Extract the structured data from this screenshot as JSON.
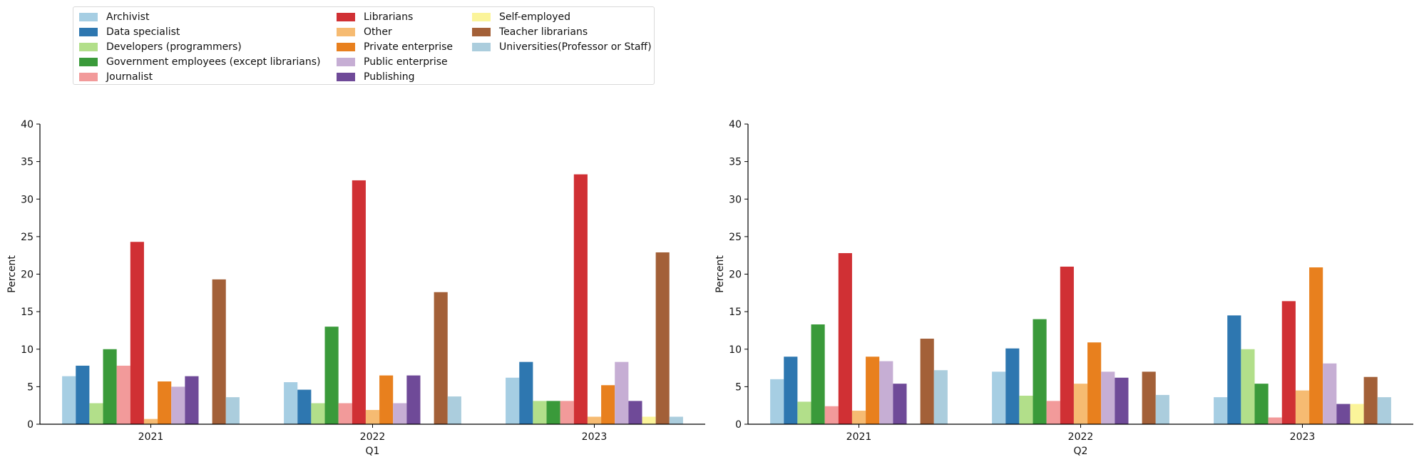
{
  "colors": [
    "#a6cee3",
    "#2e77b0",
    "#b2df8a",
    "#3a9a3a",
    "#f29a9a",
    "#d03034",
    "#f6bb72",
    "#e8801e",
    "#c6aed4",
    "#6f4a98",
    "#fbf49a",
    "#a36038",
    "#abcddd"
  ],
  "chart_data": [
    {
      "type": "bar",
      "categories": [
        "2021",
        "2022",
        "2023"
      ],
      "xlabel": "Q1",
      "ylabel": "Percent",
      "ylim": [
        0,
        40
      ],
      "yticks": [
        0,
        5,
        10,
        15,
        20,
        25,
        30,
        35,
        40
      ],
      "legend": "top-left",
      "grid": false,
      "series": [
        {
          "name": "Archivist",
          "values": [
            6.4,
            5.6,
            6.2
          ]
        },
        {
          "name": "Data specialist",
          "values": [
            7.8,
            4.6,
            8.3
          ]
        },
        {
          "name": "Developers (programmers)",
          "values": [
            2.8,
            2.8,
            3.1
          ]
        },
        {
          "name": "Government employees (except librarians)",
          "values": [
            10.0,
            13.0,
            3.1
          ]
        },
        {
          "name": "Journalist",
          "values": [
            7.8,
            2.8,
            3.1
          ]
        },
        {
          "name": "Librarians",
          "values": [
            24.3,
            32.5,
            33.3
          ]
        },
        {
          "name": "Other",
          "values": [
            0.7,
            1.9,
            1.0
          ]
        },
        {
          "name": "Private enterprise",
          "values": [
            5.7,
            6.5,
            5.2
          ]
        },
        {
          "name": "Public enterprise",
          "values": [
            5.0,
            2.8,
            8.3
          ]
        },
        {
          "name": "Publishing",
          "values": [
            6.4,
            6.5,
            3.1
          ]
        },
        {
          "name": "Self-employed",
          "values": [
            0,
            0,
            1.0
          ]
        },
        {
          "name": "Teacher librarians",
          "values": [
            19.3,
            17.6,
            22.9
          ]
        },
        {
          "name": "Universities(Professor or Staff)",
          "values": [
            3.6,
            3.7,
            1.0
          ]
        }
      ]
    },
    {
      "type": "bar",
      "categories": [
        "2021",
        "2022",
        "2023"
      ],
      "xlabel": "Q2",
      "ylabel": "Percent",
      "ylim": [
        0,
        40
      ],
      "yticks": [
        0,
        5,
        10,
        15,
        20,
        25,
        30,
        35,
        40
      ],
      "grid": false,
      "series": [
        {
          "name": "Archivist",
          "values": [
            6.0,
            7.0,
            3.6
          ]
        },
        {
          "name": "Data specialist",
          "values": [
            9.0,
            10.1,
            14.5
          ]
        },
        {
          "name": "Developers (programmers)",
          "values": [
            3.0,
            3.8,
            10.0
          ]
        },
        {
          "name": "Government employees (except librarians)",
          "values": [
            13.3,
            14.0,
            5.4
          ]
        },
        {
          "name": "Journalist",
          "values": [
            2.4,
            3.1,
            0.9
          ]
        },
        {
          "name": "Librarians",
          "values": [
            22.8,
            21.0,
            16.4
          ]
        },
        {
          "name": "Other",
          "values": [
            1.8,
            5.4,
            4.5
          ]
        },
        {
          "name": "Private enterprise",
          "values": [
            9.0,
            10.9,
            20.9
          ]
        },
        {
          "name": "Public enterprise",
          "values": [
            8.4,
            7.0,
            8.1
          ]
        },
        {
          "name": "Publishing",
          "values": [
            5.4,
            6.2,
            2.7
          ]
        },
        {
          "name": "Self-employed",
          "values": [
            0,
            0,
            2.7
          ]
        },
        {
          "name": "Teacher librarians",
          "values": [
            11.4,
            7.0,
            6.3
          ]
        },
        {
          "name": "Universities(Professor or Staff)",
          "values": [
            7.2,
            3.9,
            3.6
          ]
        }
      ]
    }
  ]
}
